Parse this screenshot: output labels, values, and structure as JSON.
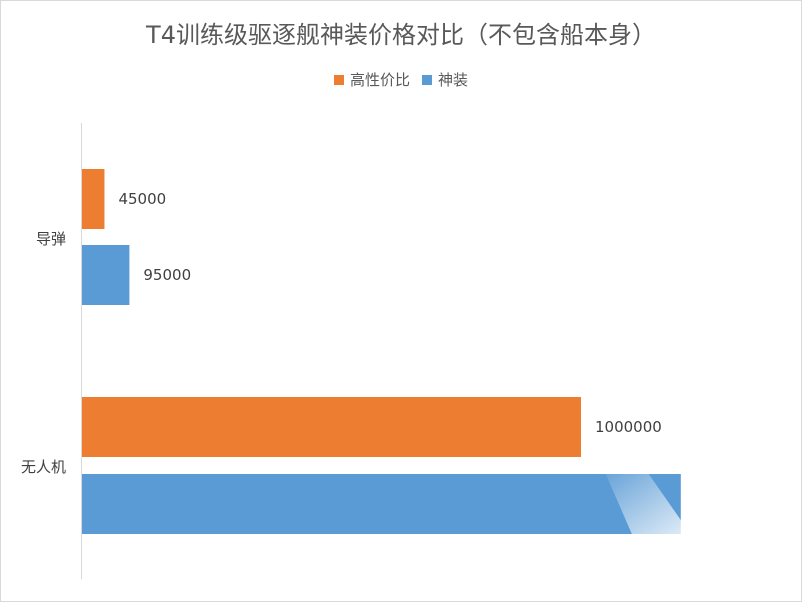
{
  "chart_data": {
    "type": "bar",
    "orientation": "horizontal",
    "title": "T4训练级驱逐舰神装价格对比（不包含船本身）",
    "categories": [
      "导弹",
      "无人机"
    ],
    "series": [
      {
        "name": "高性价比",
        "color": "#ED7D31",
        "values": [
          45000,
          1000000
        ]
      },
      {
        "name": "神装",
        "color": "#5B9BD5",
        "values": [
          95000,
          1200000
        ]
      }
    ],
    "data_labels": [
      [
        "45000",
        "1000000"
      ],
      [
        "95000",
        ""
      ]
    ],
    "legend_position": "top",
    "grid": false
  }
}
